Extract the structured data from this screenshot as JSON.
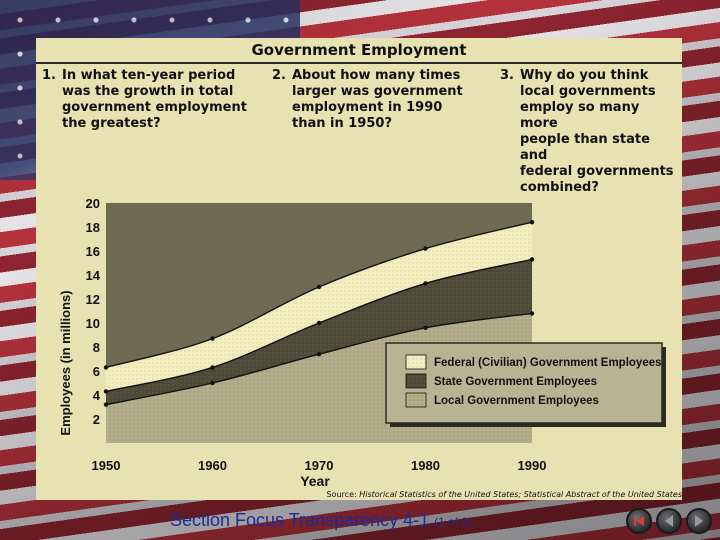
{
  "panel": {
    "title": "Government Employment",
    "questions": [
      {
        "num": "1.",
        "lines": [
          "In what ten-year period",
          "was the growth in total",
          "government employment",
          "the greatest?"
        ]
      },
      {
        "num": "2.",
        "lines": [
          "About how many times",
          "larger was government",
          "employment in 1990",
          "than in 1950?"
        ]
      },
      {
        "num": "3.",
        "lines": [
          "Why do you think",
          "local governments",
          "employ so many more",
          "people than state and",
          "federal governments",
          "combined?"
        ]
      }
    ],
    "source_prefix": "Source: ",
    "source_text": "Historical Statistics of the United States; Statistical Abstract of the United States"
  },
  "footer": {
    "title": "Section Focus Transparency 4-1",
    "page": "(1 of 2)"
  },
  "nav": {
    "buttons": [
      "first-icon",
      "back-icon",
      "forward-icon",
      "last-icon"
    ]
  },
  "colors": {
    "panel_bg": "#e8e2b2",
    "federal": "#f4eebe",
    "state": "#4c4a38",
    "local": "#b3ad8c",
    "footer_text": "#1c2b95"
  },
  "chart_data": {
    "type": "area",
    "stacked": true,
    "xlabel": "Year",
    "ylabel": "Employees (in millions)",
    "x": [
      1950,
      1960,
      1970,
      1980,
      1990
    ],
    "ylim": [
      0,
      20
    ],
    "yticks": [
      2,
      4,
      6,
      8,
      10,
      12,
      14,
      16,
      18,
      20
    ],
    "series": [
      {
        "name": "Local Government Employees",
        "values": [
          3.2,
          5.0,
          7.4,
          9.6,
          10.8
        ]
      },
      {
        "name": "State Government Employees",
        "values": [
          1.1,
          1.3,
          2.6,
          3.7,
          4.5
        ]
      },
      {
        "name": "Federal (Civilian) Government Employees",
        "values": [
          2.0,
          2.4,
          3.0,
          2.9,
          3.1
        ]
      }
    ],
    "legend_order": [
      "Federal (Civilian) Government Employees",
      "State Government Employees",
      "Local Government Employees"
    ],
    "legend_position": "bottom-right",
    "grid": false
  }
}
